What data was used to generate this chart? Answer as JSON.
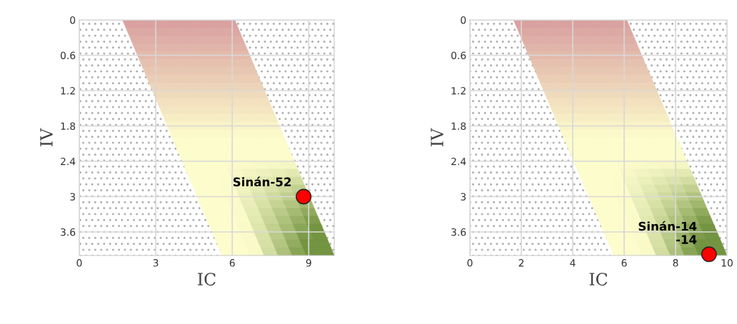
{
  "chart_data": [
    {
      "type": "scatter",
      "xlabel": "IC",
      "ylabel": "IV",
      "xlim": [
        0,
        10
      ],
      "ylim": [
        4,
        0
      ],
      "xticks": [
        0,
        3,
        6,
        9
      ],
      "yticks": [
        0,
        0.6,
        1.2,
        1.8,
        2.4,
        3,
        3.6
      ],
      "grid": true,
      "marker": "circle",
      "series": [
        {
          "name": "Sinán-52",
          "color": "#ff0000",
          "x": [
            8.8
          ],
          "values": [
            3.0
          ]
        }
      ]
    },
    {
      "type": "scatter",
      "xlabel": "IC",
      "ylabel": "IV",
      "xlim": [
        0,
        10
      ],
      "ylim": [
        4,
        0
      ],
      "xticks": [
        0,
        2,
        4,
        6,
        8,
        10
      ],
      "yticks": [
        0,
        0.6,
        1.2,
        1.8,
        2.4,
        3,
        3.6
      ],
      "grid": true,
      "marker": "circle",
      "series": [
        {
          "name": "Sinán-14\n-14",
          "color": "#ff0000",
          "x": [
            9.3
          ],
          "values": [
            3.98
          ]
        }
      ]
    }
  ]
}
